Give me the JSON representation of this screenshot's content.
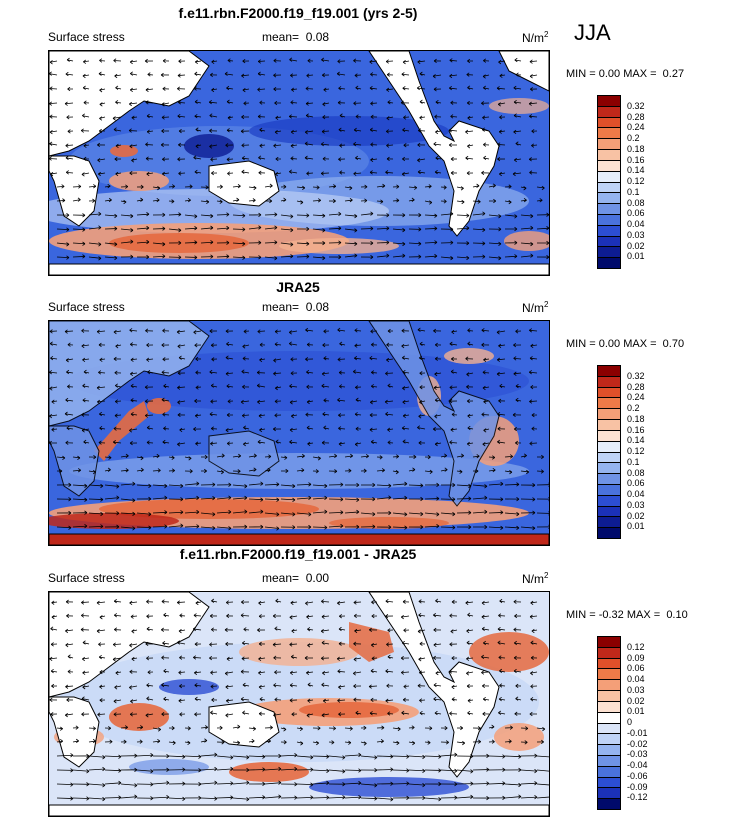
{
  "season": "JJA",
  "panels": [
    {
      "title": "f.e11.rbn.F2000.f19_f19.001 (yrs 2-5)",
      "left_label": "Surface stress",
      "mean_label": "mean=",
      "mean_value": "0.08",
      "units_base": "N/m",
      "units_exp": "2",
      "min_label": "MIN =",
      "min_value": "0.00",
      "max_label": "MAX =",
      "max_value": "0.27",
      "colorbar": {
        "colors": [
          "#8b0000",
          "#c0281a",
          "#e0502a",
          "#ef7a48",
          "#f49f78",
          "#f8c2a4",
          "#fde2d2",
          "#e6eefb",
          "#bfd3f6",
          "#95b4ef",
          "#6f93e6",
          "#4a72dd",
          "#2c4ed3",
          "#1b31b8",
          "#0d1c92",
          "#000a6b"
        ],
        "labels": [
          "0.32",
          "0.28",
          "0.24",
          "0.2",
          "0.18",
          "0.16",
          "0.14",
          "0.12",
          "0.1",
          "0.08",
          "0.06",
          "0.04",
          "0.03",
          "0.02",
          "0.01"
        ]
      }
    },
    {
      "title": "JRA25",
      "left_label": "Surface stress",
      "mean_label": "mean=",
      "mean_value": "0.08",
      "units_base": "N/m",
      "units_exp": "2",
      "min_label": "MIN =",
      "min_value": "0.00",
      "max_label": "MAX =",
      "max_value": "0.70",
      "colorbar": {
        "colors": [
          "#8b0000",
          "#c0281a",
          "#e0502a",
          "#ef7a48",
          "#f49f78",
          "#f8c2a4",
          "#fde2d2",
          "#e6eefb",
          "#bfd3f6",
          "#95b4ef",
          "#6f93e6",
          "#4a72dd",
          "#2c4ed3",
          "#1b31b8",
          "#0d1c92",
          "#000a6b"
        ],
        "labels": [
          "0.32",
          "0.28",
          "0.24",
          "0.2",
          "0.18",
          "0.16",
          "0.14",
          "0.12",
          "0.1",
          "0.08",
          "0.06",
          "0.04",
          "0.03",
          "0.02",
          "0.01"
        ]
      }
    },
    {
      "title": "f.e11.rbn.F2000.f19_f19.001 - JRA25",
      "left_label": "Surface stress",
      "mean_label": "mean=",
      "mean_value": "0.00",
      "units_base": "N/m",
      "units_exp": "2",
      "min_label": "MIN =",
      "min_value": "-0.32",
      "max_label": "MAX =",
      "max_value": "0.10",
      "colorbar": {
        "colors": [
          "#8b0000",
          "#c0281a",
          "#e0502a",
          "#ef7a48",
          "#f49f78",
          "#f8c2a4",
          "#fde2d2",
          "#ffffff",
          "#dbe5f8",
          "#bfd3f6",
          "#95b4ef",
          "#6f93e6",
          "#4a72dd",
          "#2c4ed3",
          "#1b31b8",
          "#000a6b"
        ],
        "labels": [
          "0.12",
          "0.09",
          "0.06",
          "0.04",
          "0.03",
          "0.02",
          "0.01",
          "0",
          "-0.01",
          "-0.02",
          "-0.03",
          "-0.04",
          "-0.06",
          "-0.09",
          "-0.12"
        ]
      }
    }
  ],
  "chart_data": [
    {
      "type": "heatmap",
      "title": "f.e11.rbn.F2000.f19_f19.001 (yrs 2-5)",
      "variable": "Surface stress",
      "units": "N/m2",
      "season": "JJA",
      "mean": 0.08,
      "min": 0.0,
      "max": 0.27,
      "contour_levels": [
        0.01,
        0.02,
        0.03,
        0.04,
        0.06,
        0.08,
        0.1,
        0.12,
        0.14,
        0.16,
        0.18,
        0.2,
        0.24,
        0.28,
        0.32
      ]
    },
    {
      "type": "heatmap",
      "title": "JRA25",
      "variable": "Surface stress",
      "units": "N/m2",
      "season": "JJA",
      "mean": 0.08,
      "min": 0.0,
      "max": 0.7,
      "contour_levels": [
        0.01,
        0.02,
        0.03,
        0.04,
        0.06,
        0.08,
        0.1,
        0.12,
        0.14,
        0.16,
        0.18,
        0.2,
        0.24,
        0.28,
        0.32
      ]
    },
    {
      "type": "heatmap",
      "title": "f.e11.rbn.F2000.f19_f19.001 - JRA25",
      "variable": "Surface stress",
      "units": "N/m2",
      "season": "JJA",
      "mean": 0.0,
      "min": -0.32,
      "max": 0.1,
      "contour_levels": [
        -0.12,
        -0.09,
        -0.06,
        -0.04,
        -0.03,
        -0.02,
        -0.01,
        0,
        0.01,
        0.02,
        0.03,
        0.04,
        0.06,
        0.09,
        0.12
      ]
    }
  ]
}
